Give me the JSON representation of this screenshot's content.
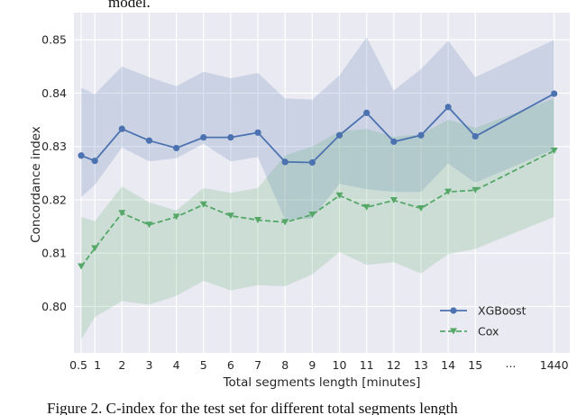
{
  "top_text": "model.",
  "caption": "Figure 2. C-index for the test set for different total segments length",
  "chart_data": {
    "type": "line",
    "xlabel": "Total segments length [minutes]",
    "ylabel": "Concordance index",
    "categories": [
      "0.5",
      "1",
      "2",
      "3",
      "4",
      "5",
      "6",
      "7",
      "8",
      "9",
      "10",
      "11",
      "12",
      "13",
      "14",
      "15",
      "1440"
    ],
    "x_break_label": "...",
    "ylim": [
      0.7913,
      0.8551
    ],
    "yticks": [
      {
        "value": 0.8,
        "label": "0.80"
      },
      0.81,
      0.82,
      0.83,
      0.84,
      0.85
    ],
    "grid": true,
    "legend": "lower right",
    "series": [
      {
        "name": "XGBoost",
        "color": "#4c72b0",
        "marker": "circle",
        "linestyle": "solid",
        "values": [
          0.8283,
          0.8273,
          0.8333,
          0.8311,
          0.8297,
          0.8317,
          0.8317,
          0.8326,
          0.8271,
          0.827,
          0.8321,
          0.8363,
          0.8309,
          0.8321,
          0.8374,
          0.8319,
          0.8399
        ],
        "upper": [
          0.841,
          0.8398,
          0.845,
          0.843,
          0.8413,
          0.844,
          0.8428,
          0.8438,
          0.839,
          0.8388,
          0.8433,
          0.8505,
          0.8405,
          0.8445,
          0.8498,
          0.843,
          0.85
        ],
        "lower": [
          0.8205,
          0.8228,
          0.8298,
          0.8272,
          0.8278,
          0.8305,
          0.8272,
          0.828,
          0.8163,
          0.8165,
          0.823,
          0.822,
          0.8215,
          0.8215,
          0.8268,
          0.8232,
          0.8295
        ]
      },
      {
        "name": "Cox",
        "color": "#55a868",
        "marker": "triangle-down",
        "linestyle": "dashed",
        "values": [
          0.8075,
          0.8109,
          0.8175,
          0.8153,
          0.8168,
          0.8191,
          0.817,
          0.8162,
          0.8158,
          0.8172,
          0.8208,
          0.8186,
          0.8199,
          0.8184,
          0.8215,
          0.8218,
          0.8292
        ],
        "upper": [
          0.8168,
          0.816,
          0.8225,
          0.8195,
          0.818,
          0.8222,
          0.8213,
          0.8222,
          0.8283,
          0.83,
          0.8328,
          0.8333,
          0.8318,
          0.8323,
          0.835,
          0.8335,
          0.839
        ],
        "lower": [
          0.7938,
          0.798,
          0.801,
          0.8003,
          0.802,
          0.8048,
          0.803,
          0.804,
          0.8038,
          0.806,
          0.8102,
          0.8078,
          0.8083,
          0.8062,
          0.8098,
          0.8108,
          0.8168
        ]
      }
    ]
  }
}
